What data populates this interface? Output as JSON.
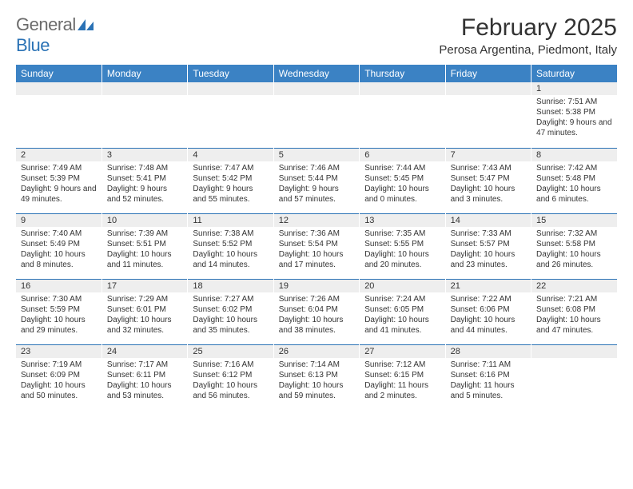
{
  "brand": {
    "part1": "General",
    "part2": "Blue"
  },
  "title": "February 2025",
  "location": "Perosa Argentina, Piedmont, Italy",
  "colors": {
    "header_bg": "#3b82c4",
    "header_text": "#ffffff",
    "daynum_bg": "#eeeeee",
    "sep": "#2a72b5",
    "logo_gray": "#6b6b6b",
    "logo_blue": "#2a72b5"
  },
  "weekdays": [
    "Sunday",
    "Monday",
    "Tuesday",
    "Wednesday",
    "Thursday",
    "Friday",
    "Saturday"
  ],
  "weeks": [
    [
      null,
      null,
      null,
      null,
      null,
      null,
      {
        "d": "1",
        "sr": "Sunrise: 7:51 AM",
        "ss": "Sunset: 5:38 PM",
        "dl": "Daylight: 9 hours and 47 minutes."
      }
    ],
    [
      {
        "d": "2",
        "sr": "Sunrise: 7:49 AM",
        "ss": "Sunset: 5:39 PM",
        "dl": "Daylight: 9 hours and 49 minutes."
      },
      {
        "d": "3",
        "sr": "Sunrise: 7:48 AM",
        "ss": "Sunset: 5:41 PM",
        "dl": "Daylight: 9 hours and 52 minutes."
      },
      {
        "d": "4",
        "sr": "Sunrise: 7:47 AM",
        "ss": "Sunset: 5:42 PM",
        "dl": "Daylight: 9 hours and 55 minutes."
      },
      {
        "d": "5",
        "sr": "Sunrise: 7:46 AM",
        "ss": "Sunset: 5:44 PM",
        "dl": "Daylight: 9 hours and 57 minutes."
      },
      {
        "d": "6",
        "sr": "Sunrise: 7:44 AM",
        "ss": "Sunset: 5:45 PM",
        "dl": "Daylight: 10 hours and 0 minutes."
      },
      {
        "d": "7",
        "sr": "Sunrise: 7:43 AM",
        "ss": "Sunset: 5:47 PM",
        "dl": "Daylight: 10 hours and 3 minutes."
      },
      {
        "d": "8",
        "sr": "Sunrise: 7:42 AM",
        "ss": "Sunset: 5:48 PM",
        "dl": "Daylight: 10 hours and 6 minutes."
      }
    ],
    [
      {
        "d": "9",
        "sr": "Sunrise: 7:40 AM",
        "ss": "Sunset: 5:49 PM",
        "dl": "Daylight: 10 hours and 8 minutes."
      },
      {
        "d": "10",
        "sr": "Sunrise: 7:39 AM",
        "ss": "Sunset: 5:51 PM",
        "dl": "Daylight: 10 hours and 11 minutes."
      },
      {
        "d": "11",
        "sr": "Sunrise: 7:38 AM",
        "ss": "Sunset: 5:52 PM",
        "dl": "Daylight: 10 hours and 14 minutes."
      },
      {
        "d": "12",
        "sr": "Sunrise: 7:36 AM",
        "ss": "Sunset: 5:54 PM",
        "dl": "Daylight: 10 hours and 17 minutes."
      },
      {
        "d": "13",
        "sr": "Sunrise: 7:35 AM",
        "ss": "Sunset: 5:55 PM",
        "dl": "Daylight: 10 hours and 20 minutes."
      },
      {
        "d": "14",
        "sr": "Sunrise: 7:33 AM",
        "ss": "Sunset: 5:57 PM",
        "dl": "Daylight: 10 hours and 23 minutes."
      },
      {
        "d": "15",
        "sr": "Sunrise: 7:32 AM",
        "ss": "Sunset: 5:58 PM",
        "dl": "Daylight: 10 hours and 26 minutes."
      }
    ],
    [
      {
        "d": "16",
        "sr": "Sunrise: 7:30 AM",
        "ss": "Sunset: 5:59 PM",
        "dl": "Daylight: 10 hours and 29 minutes."
      },
      {
        "d": "17",
        "sr": "Sunrise: 7:29 AM",
        "ss": "Sunset: 6:01 PM",
        "dl": "Daylight: 10 hours and 32 minutes."
      },
      {
        "d": "18",
        "sr": "Sunrise: 7:27 AM",
        "ss": "Sunset: 6:02 PM",
        "dl": "Daylight: 10 hours and 35 minutes."
      },
      {
        "d": "19",
        "sr": "Sunrise: 7:26 AM",
        "ss": "Sunset: 6:04 PM",
        "dl": "Daylight: 10 hours and 38 minutes."
      },
      {
        "d": "20",
        "sr": "Sunrise: 7:24 AM",
        "ss": "Sunset: 6:05 PM",
        "dl": "Daylight: 10 hours and 41 minutes."
      },
      {
        "d": "21",
        "sr": "Sunrise: 7:22 AM",
        "ss": "Sunset: 6:06 PM",
        "dl": "Daylight: 10 hours and 44 minutes."
      },
      {
        "d": "22",
        "sr": "Sunrise: 7:21 AM",
        "ss": "Sunset: 6:08 PM",
        "dl": "Daylight: 10 hours and 47 minutes."
      }
    ],
    [
      {
        "d": "23",
        "sr": "Sunrise: 7:19 AM",
        "ss": "Sunset: 6:09 PM",
        "dl": "Daylight: 10 hours and 50 minutes."
      },
      {
        "d": "24",
        "sr": "Sunrise: 7:17 AM",
        "ss": "Sunset: 6:11 PM",
        "dl": "Daylight: 10 hours and 53 minutes."
      },
      {
        "d": "25",
        "sr": "Sunrise: 7:16 AM",
        "ss": "Sunset: 6:12 PM",
        "dl": "Daylight: 10 hours and 56 minutes."
      },
      {
        "d": "26",
        "sr": "Sunrise: 7:14 AM",
        "ss": "Sunset: 6:13 PM",
        "dl": "Daylight: 10 hours and 59 minutes."
      },
      {
        "d": "27",
        "sr": "Sunrise: 7:12 AM",
        "ss": "Sunset: 6:15 PM",
        "dl": "Daylight: 11 hours and 2 minutes."
      },
      {
        "d": "28",
        "sr": "Sunrise: 7:11 AM",
        "ss": "Sunset: 6:16 PM",
        "dl": "Daylight: 11 hours and 5 minutes."
      },
      null
    ]
  ]
}
